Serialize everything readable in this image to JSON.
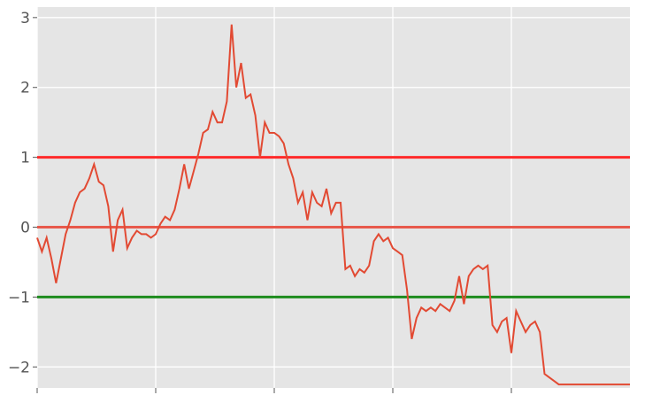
{
  "chart_data": {
    "type": "line",
    "style": "ggplot",
    "background_color": "#e5e5e5",
    "grid": true,
    "grid_color": "#ffffff",
    "xlim": [
      0,
      250
    ],
    "ylim": [
      -2.3,
      3.15
    ],
    "x_ticks": [
      0,
      50,
      100,
      150,
      200
    ],
    "y_ticks": [
      -2,
      -1,
      0,
      1,
      2,
      3
    ],
    "y_tick_labels": [
      "−2",
      "−1",
      "0",
      "1",
      "2",
      "3"
    ],
    "series": [
      {
        "color": "#e24a33",
        "x": [
          0,
          2,
          4,
          6,
          8,
          10,
          12,
          14,
          16,
          18,
          20,
          22,
          24,
          26,
          28,
          30,
          32,
          34,
          36,
          38,
          40,
          42,
          44,
          46,
          48,
          50,
          52,
          54,
          56,
          58,
          60,
          62,
          64,
          66,
          68,
          70,
          72,
          74,
          76,
          78,
          80,
          82,
          84,
          86,
          88,
          90,
          92,
          94,
          96,
          98,
          100,
          102,
          104,
          106,
          108,
          110,
          112,
          114,
          116,
          118,
          120,
          122,
          124,
          126,
          128,
          130,
          132,
          134,
          136,
          138,
          140,
          142,
          144,
          146,
          148,
          150,
          152,
          154,
          156,
          158,
          160,
          162,
          164,
          166,
          168,
          170,
          172,
          174,
          176,
          178,
          180,
          182,
          184,
          186,
          188,
          190,
          192,
          194,
          196,
          198,
          200,
          202,
          204,
          206,
          208,
          210,
          212,
          214,
          216,
          218,
          220,
          222,
          224,
          226,
          228,
          230,
          232,
          234,
          236,
          238,
          240,
          242,
          244,
          246,
          248,
          250
        ],
        "y": [
          -0.15,
          -0.35,
          -0.15,
          -0.45,
          -0.8,
          -0.45,
          -0.1,
          0.1,
          0.35,
          0.5,
          0.55,
          0.7,
          0.9,
          0.65,
          0.6,
          0.3,
          -0.35,
          0.1,
          0.25,
          -0.3,
          -0.15,
          -0.05,
          -0.1,
          -0.1,
          -0.15,
          -0.1,
          0.05,
          0.15,
          0.1,
          0.25,
          0.55,
          0.9,
          0.55,
          0.8,
          1.05,
          1.35,
          1.4,
          1.65,
          1.5,
          1.5,
          1.8,
          2.9,
          2.0,
          2.35,
          1.85,
          1.9,
          1.6,
          1.0,
          1.5,
          1.35,
          1.35,
          1.3,
          1.2,
          0.9,
          0.7,
          0.35,
          0.5,
          0.1,
          0.5,
          0.35,
          0.3,
          0.55,
          0.2,
          0.35,
          0.35,
          -0.6,
          -0.55,
          -0.7,
          -0.6,
          -0.65,
          -0.55,
          -0.2,
          -0.1,
          -0.2,
          -0.15,
          -0.3,
          -0.35,
          -0.4,
          -0.9,
          -1.6,
          -1.3,
          -1.15,
          -1.2,
          -1.15,
          -1.2,
          -1.1,
          -1.15,
          -1.2,
          -1.05,
          -0.7,
          -1.1,
          -0.7,
          -0.6,
          -0.55,
          -0.6,
          -0.55,
          -1.4,
          -1.5,
          -1.35,
          -1.3,
          -1.8,
          -1.2,
          -1.35,
          -1.5,
          -1.4,
          -1.35,
          -1.5,
          -2.1,
          -2.15,
          -2.2,
          -2.25,
          -2.25,
          -2.25,
          -2.25,
          -2.25,
          -2.25,
          -2.25,
          -2.25,
          -2.25,
          -2.25,
          -2.25,
          -2.25,
          -2.25,
          -2.25,
          -2.25,
          -2.25
        ]
      }
    ],
    "horizontal_lines": [
      {
        "y": 1,
        "color": "#ff2a2a"
      },
      {
        "y": 0,
        "color": "#e8594c"
      },
      {
        "y": -1,
        "color": "#1e8c1e"
      }
    ]
  }
}
